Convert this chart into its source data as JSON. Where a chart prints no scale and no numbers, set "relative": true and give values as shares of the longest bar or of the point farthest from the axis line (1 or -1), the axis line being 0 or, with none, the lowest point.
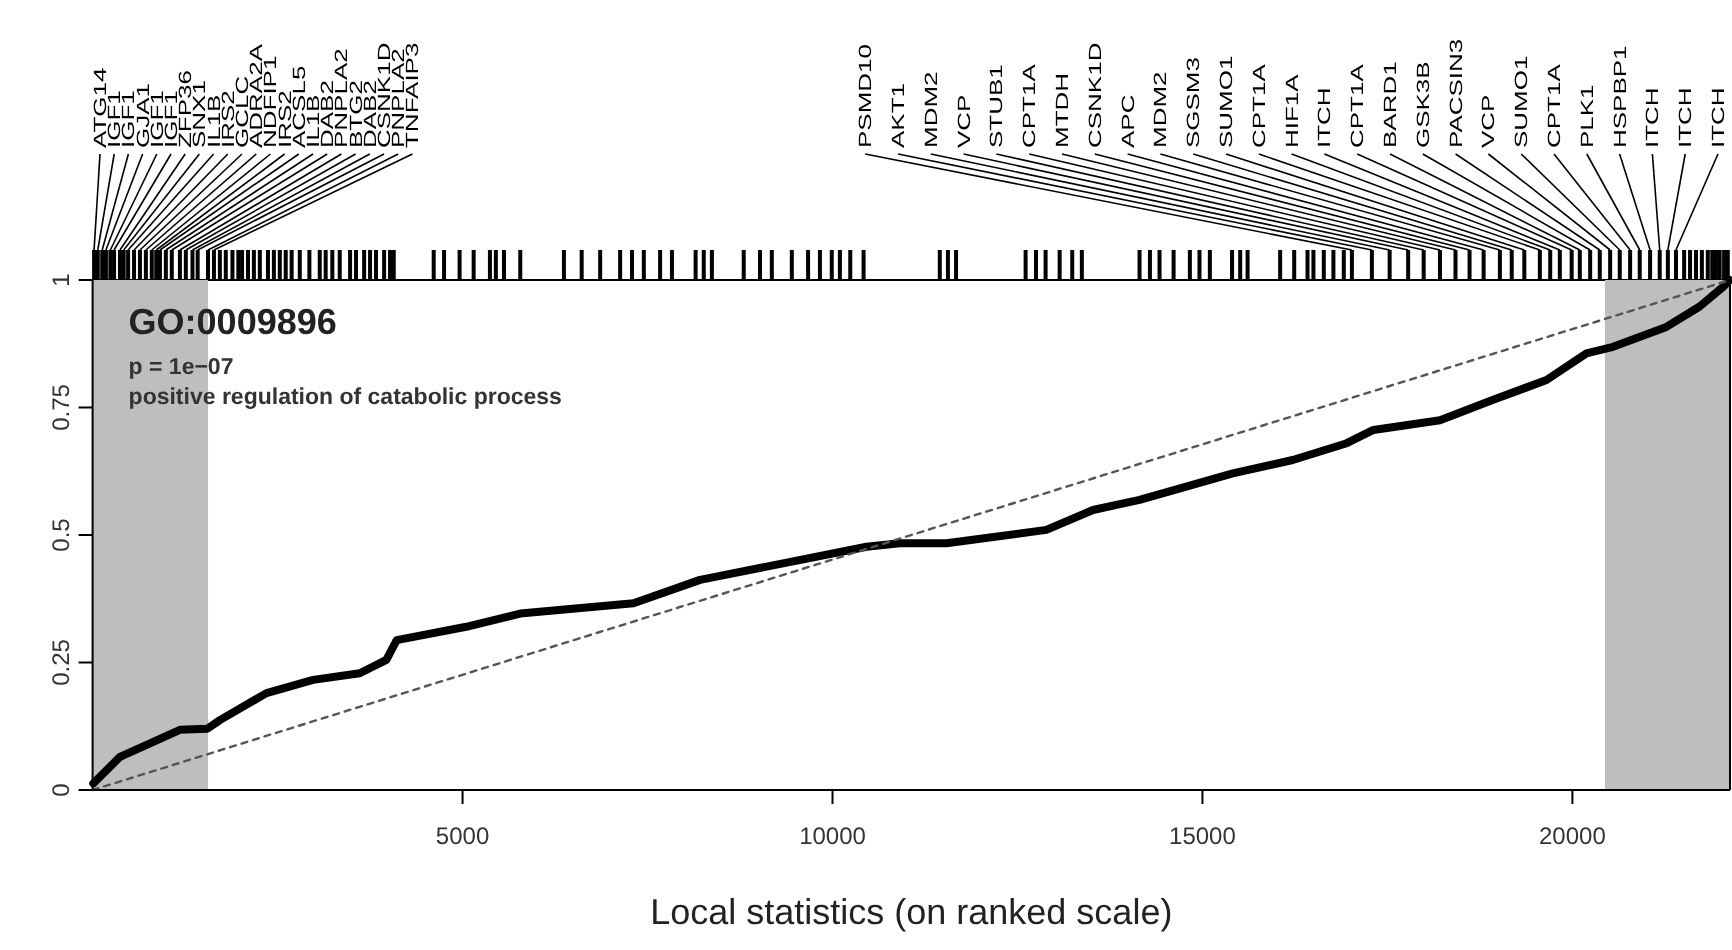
{
  "chart_data": [
    {
      "type": "bar",
      "relative": true,
      "color": "#000000",
      "xlim": [
        0,
        22130
      ],
      "x": [
        20,
        70,
        130,
        180,
        240,
        290,
        370,
        420,
        480,
        560,
        640,
        720,
        800,
        860,
        910,
        990,
        1070,
        1180,
        1260,
        1350,
        1420,
        1560,
        1640,
        1720,
        1800,
        1890,
        1970,
        2020,
        2100,
        2180,
        2260,
        2370,
        2450,
        2530,
        2610,
        2690,
        2800,
        2930,
        3070,
        3150,
        3240,
        3340,
        3480,
        3560,
        3670,
        3750,
        3830,
        3940,
        4020,
        4070,
        4610,
        4750,
        4960,
        5150,
        5370,
        5450,
        5560,
        5780,
        6370,
        6610,
        6860,
        7130,
        7290,
        7450,
        7670,
        7830,
        8150,
        8260,
        8370,
        8800,
        9020,
        9180,
        9450,
        9670,
        9830,
        9990,
        10100,
        10240,
        10420,
        11450,
        11560,
        11670,
        12610,
        12750,
        12880,
        13070,
        13240,
        13370,
        14150,
        14290,
        14420,
        14610,
        14830,
        14960,
        15100,
        15400,
        15510,
        15610,
        16050,
        16240,
        16420,
        16500,
        16640,
        16770,
        16910,
        17020,
        17290,
        17530,
        17780,
        17990,
        18210,
        18420,
        18610,
        18800,
        19020,
        19180,
        19350,
        19560,
        19700,
        19830,
        19990,
        20100,
        20240,
        20370,
        20510,
        20640,
        20780,
        20910,
        21050,
        21180,
        21290,
        21400,
        21510,
        21590,
        21670,
        21750,
        21830,
        21890,
        21940,
        21990,
        22050,
        22100
      ],
      "values": [
        1,
        1,
        1,
        1,
        1,
        1,
        1,
        1,
        1,
        1,
        1,
        1,
        1,
        1,
        1,
        1,
        1,
        1,
        1,
        1,
        1,
        1,
        1,
        1,
        1,
        1,
        1,
        1,
        1,
        1,
        1,
        1,
        1,
        1,
        1,
        1,
        1,
        1,
        1,
        1,
        1,
        1,
        1,
        1,
        1,
        1,
        1,
        1,
        1,
        1,
        1,
        1,
        1,
        1,
        1,
        1,
        1,
        1,
        1,
        1,
        1,
        1,
        1,
        1,
        1,
        1,
        1,
        1,
        1,
        1,
        1,
        1,
        1,
        1,
        1,
        1,
        1,
        1,
        1,
        1,
        1,
        1,
        1,
        1,
        1,
        1,
        1,
        1,
        1,
        1,
        1,
        1,
        1,
        1,
        1,
        1,
        1,
        1,
        1,
        1,
        1,
        1,
        1,
        1,
        1,
        1,
        1,
        1,
        1,
        1,
        1,
        1,
        1,
        1,
        1,
        1,
        1,
        1,
        1,
        1,
        1,
        1,
        1,
        1,
        1,
        1,
        1,
        1,
        1,
        1,
        1,
        1,
        1,
        1,
        1,
        1,
        1,
        1,
        1,
        1,
        1,
        1
      ],
      "annotations": [
        {
          "text": "ATG14",
          "x": 20
        },
        {
          "text": "IGF1",
          "x": 70
        },
        {
          "text": "IGF1",
          "x": 130
        },
        {
          "text": "GJA1",
          "x": 180
        },
        {
          "text": "IGF1",
          "x": 240
        },
        {
          "text": "IGF1",
          "x": 290
        },
        {
          "text": "ZFP36",
          "x": 370
        },
        {
          "text": "SNX1",
          "x": 420
        },
        {
          "text": "IL1B",
          "x": 480
        },
        {
          "text": "IRS2",
          "x": 560
        },
        {
          "text": "GCLC",
          "x": 640
        },
        {
          "text": "ADRA2A",
          "x": 720
        },
        {
          "text": "NDFIP1",
          "x": 800
        },
        {
          "text": "IRS2",
          "x": 860
        },
        {
          "text": "ACSL5",
          "x": 910
        },
        {
          "text": "IL1B",
          "x": 990
        },
        {
          "text": "DAB2",
          "x": 1070
        },
        {
          "text": "PNPLA2",
          "x": 1180
        },
        {
          "text": "BTG2",
          "x": 1260
        },
        {
          "text": "DAB2",
          "x": 1350
        },
        {
          "text": "CSNK1D",
          "x": 1420
        },
        {
          "text": "PNPLA2",
          "x": 1560
        },
        {
          "text": "TNFAIP3",
          "x": 1640
        },
        {
          "text": "PSMD10",
          "x": 17020
        },
        {
          "text": "AKT1",
          "x": 17290
        },
        {
          "text": "MDM2",
          "x": 17530
        },
        {
          "text": "VCP",
          "x": 17780
        },
        {
          "text": "STUB1",
          "x": 17990
        },
        {
          "text": "CPT1A",
          "x": 18210
        },
        {
          "text": "MTDH",
          "x": 18420
        },
        {
          "text": "CSNK1D",
          "x": 18610
        },
        {
          "text": "APC",
          "x": 18800
        },
        {
          "text": "MDM2",
          "x": 19020
        },
        {
          "text": "SGSM3",
          "x": 19180
        },
        {
          "text": "SUMO1",
          "x": 19350
        },
        {
          "text": "CPT1A",
          "x": 19560
        },
        {
          "text": "HIF1A",
          "x": 19700
        },
        {
          "text": "ITCH",
          "x": 19830
        },
        {
          "text": "CPT1A",
          "x": 19990
        },
        {
          "text": "BARD1",
          "x": 20100
        },
        {
          "text": "GSK3B",
          "x": 20240
        },
        {
          "text": "PACSIN3",
          "x": 20370
        },
        {
          "text": "VCP",
          "x": 20510
        },
        {
          "text": "SUMO1",
          "x": 20640
        },
        {
          "text": "CPT1A",
          "x": 20780
        },
        {
          "text": "PLK1",
          "x": 20910
        },
        {
          "text": "HSPBP1",
          "x": 21050
        },
        {
          "text": "ITCH",
          "x": 21180
        },
        {
          "text": "ITCH",
          "x": 21290
        },
        {
          "text": "ITCH",
          "x": 21400
        }
      ]
    },
    {
      "type": "line",
      "title": "GO:0009896",
      "xlabel": "Local statistics (on ranked scale)",
      "annotations": [
        "p = 1e−07",
        "positive regulation of catabolic process"
      ],
      "xlim": [
        0,
        22130
      ],
      "ylim": [
        0,
        1
      ],
      "xticks": [
        5000,
        10000,
        15000,
        20000
      ],
      "yticks": [
        0,
        0.25,
        0.5,
        0.75,
        1
      ],
      "grid": false,
      "marker": "none",
      "bands": [
        {
          "axis": "x",
          "from": 0,
          "to": 1560,
          "color": "#bebebe"
        },
        {
          "axis": "x",
          "from": 20440,
          "to": 22130,
          "color": "#bebebe"
        }
      ],
      "series": [
        {
          "color": "#000000",
          "line_style": "solid",
          "x": [
            10,
            370,
            1180,
            1550,
            1720,
            2350,
            2980,
            3610,
            3970,
            4110,
            5050,
            5780,
            7310,
            8210,
            9110,
            10460,
            10910,
            11540,
            12890,
            13520,
            14150,
            15410,
            16220,
            16950,
            17310,
            18210,
            18930,
            19650,
            20190,
            20550,
            21270,
            21720,
            22040,
            22126
          ],
          "values": [
            0.013,
            0.065,
            0.118,
            0.12,
            0.137,
            0.19,
            0.216,
            0.229,
            0.255,
            0.294,
            0.32,
            0.346,
            0.366,
            0.412,
            0.438,
            0.477,
            0.484,
            0.484,
            0.51,
            0.549,
            0.569,
            0.621,
            0.647,
            0.68,
            0.706,
            0.725,
            0.765,
            0.804,
            0.856,
            0.869,
            0.908,
            0.948,
            0.987,
            1
          ]
        },
        {
          "color": "#555555",
          "line_style": "dashed",
          "x": [
            0,
            22130
          ],
          "values": [
            0,
            1
          ]
        }
      ]
    }
  ]
}
